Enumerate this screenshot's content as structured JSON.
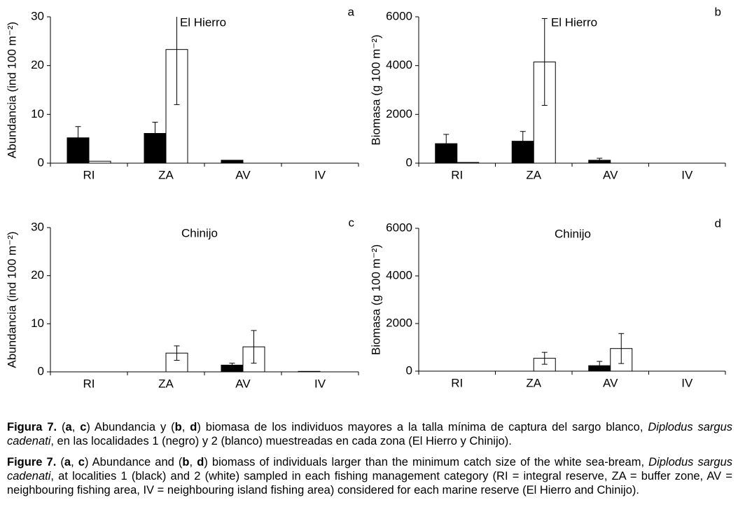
{
  "chart_data": [
    {
      "type": "bar",
      "panel_label": "a",
      "annotation": "El Hierro",
      "ylabel": "Abundancia (ind 100 m⁻²)",
      "categories": [
        "RI",
        "ZA",
        "AV",
        "IV"
      ],
      "ylim": [
        0,
        30
      ],
      "yticks": [
        0,
        10,
        20,
        30
      ],
      "series": [
        {
          "color": "#000000",
          "values": [
            5.2,
            6.1,
            0.6,
            0
          ],
          "errors": [
            2.3,
            2.3,
            null,
            null
          ]
        },
        {
          "color": "#ffffff",
          "values": [
            0.4,
            23.3,
            0,
            0
          ],
          "errors": [
            null,
            11.3,
            null,
            null
          ]
        }
      ]
    },
    {
      "type": "bar",
      "panel_label": "b",
      "annotation": "El Hierro",
      "ylabel": "Biomasa (g 100 m⁻²)",
      "categories": [
        "RI",
        "ZA",
        "AV",
        "IV"
      ],
      "ylim": [
        0,
        6000
      ],
      "yticks": [
        0,
        2000,
        4000,
        6000
      ],
      "series": [
        {
          "color": "#000000",
          "values": [
            800,
            900,
            120,
            0
          ],
          "errors": [
            380,
            400,
            80,
            null
          ]
        },
        {
          "color": "#ffffff",
          "values": [
            30,
            4150,
            0,
            0
          ],
          "errors": [
            null,
            1780,
            null,
            null
          ]
        }
      ]
    },
    {
      "type": "bar",
      "panel_label": "c",
      "annotation": "Chinijo",
      "ylabel": "Abundancia (ind 100 m⁻²)",
      "categories": [
        "RI",
        "ZA",
        "AV",
        "IV"
      ],
      "ylim": [
        0,
        30
      ],
      "yticks": [
        0,
        10,
        20,
        30
      ],
      "series": [
        {
          "color": "#000000",
          "values": [
            0,
            0,
            1.4,
            0.1
          ],
          "errors": [
            null,
            null,
            0.4,
            null
          ]
        },
        {
          "color": "#ffffff",
          "values": [
            0,
            3.9,
            5.2,
            0
          ],
          "errors": [
            null,
            1.5,
            3.4,
            null
          ]
        }
      ]
    },
    {
      "type": "bar",
      "panel_label": "d",
      "annotation": "Chinijo",
      "ylabel": "Biomasa (g 100 m⁻²)",
      "categories": [
        "RI",
        "ZA",
        "AV",
        "IV"
      ],
      "ylim": [
        0,
        6000
      ],
      "yticks": [
        0,
        2000,
        4000,
        6000
      ],
      "series": [
        {
          "color": "#000000",
          "values": [
            0,
            0,
            230,
            0
          ],
          "errors": [
            null,
            null,
            180,
            null
          ]
        },
        {
          "color": "#ffffff",
          "values": [
            0,
            540,
            950,
            0
          ],
          "errors": [
            null,
            250,
            630,
            null
          ]
        }
      ]
    }
  ],
  "caption": {
    "spanish": [
      "Figura 7.",
      " (",
      "a",
      ", ",
      "c",
      ") Abundancia y (",
      "b",
      ", ",
      "d",
      ") biomasa de los individuos mayores a la talla mínima de captura del sargo blanco, ",
      "Diplodus sargus cadenati",
      ", en las localidades 1 (negro) y 2 (blanco) muestreadas en cada zona (El Hierro y Chinijo)."
    ],
    "english": [
      "Figure 7.",
      " (",
      "a",
      ", ",
      "c",
      ") Abundance and (",
      "b",
      ", ",
      "d",
      ") biomass of individuals larger than the minimum catch size of the white sea-bream, ",
      "Diplodus sargus cadenati",
      ", at localities 1 (black) and 2 (white) sampled in each fishing management category (RI = integral reserve, ZA = buffer zone, AV = neighbouring fishing area, IV = neighbouring island fishing area) considered for each marine reserve (El Hierro and Chinijo)."
    ]
  }
}
